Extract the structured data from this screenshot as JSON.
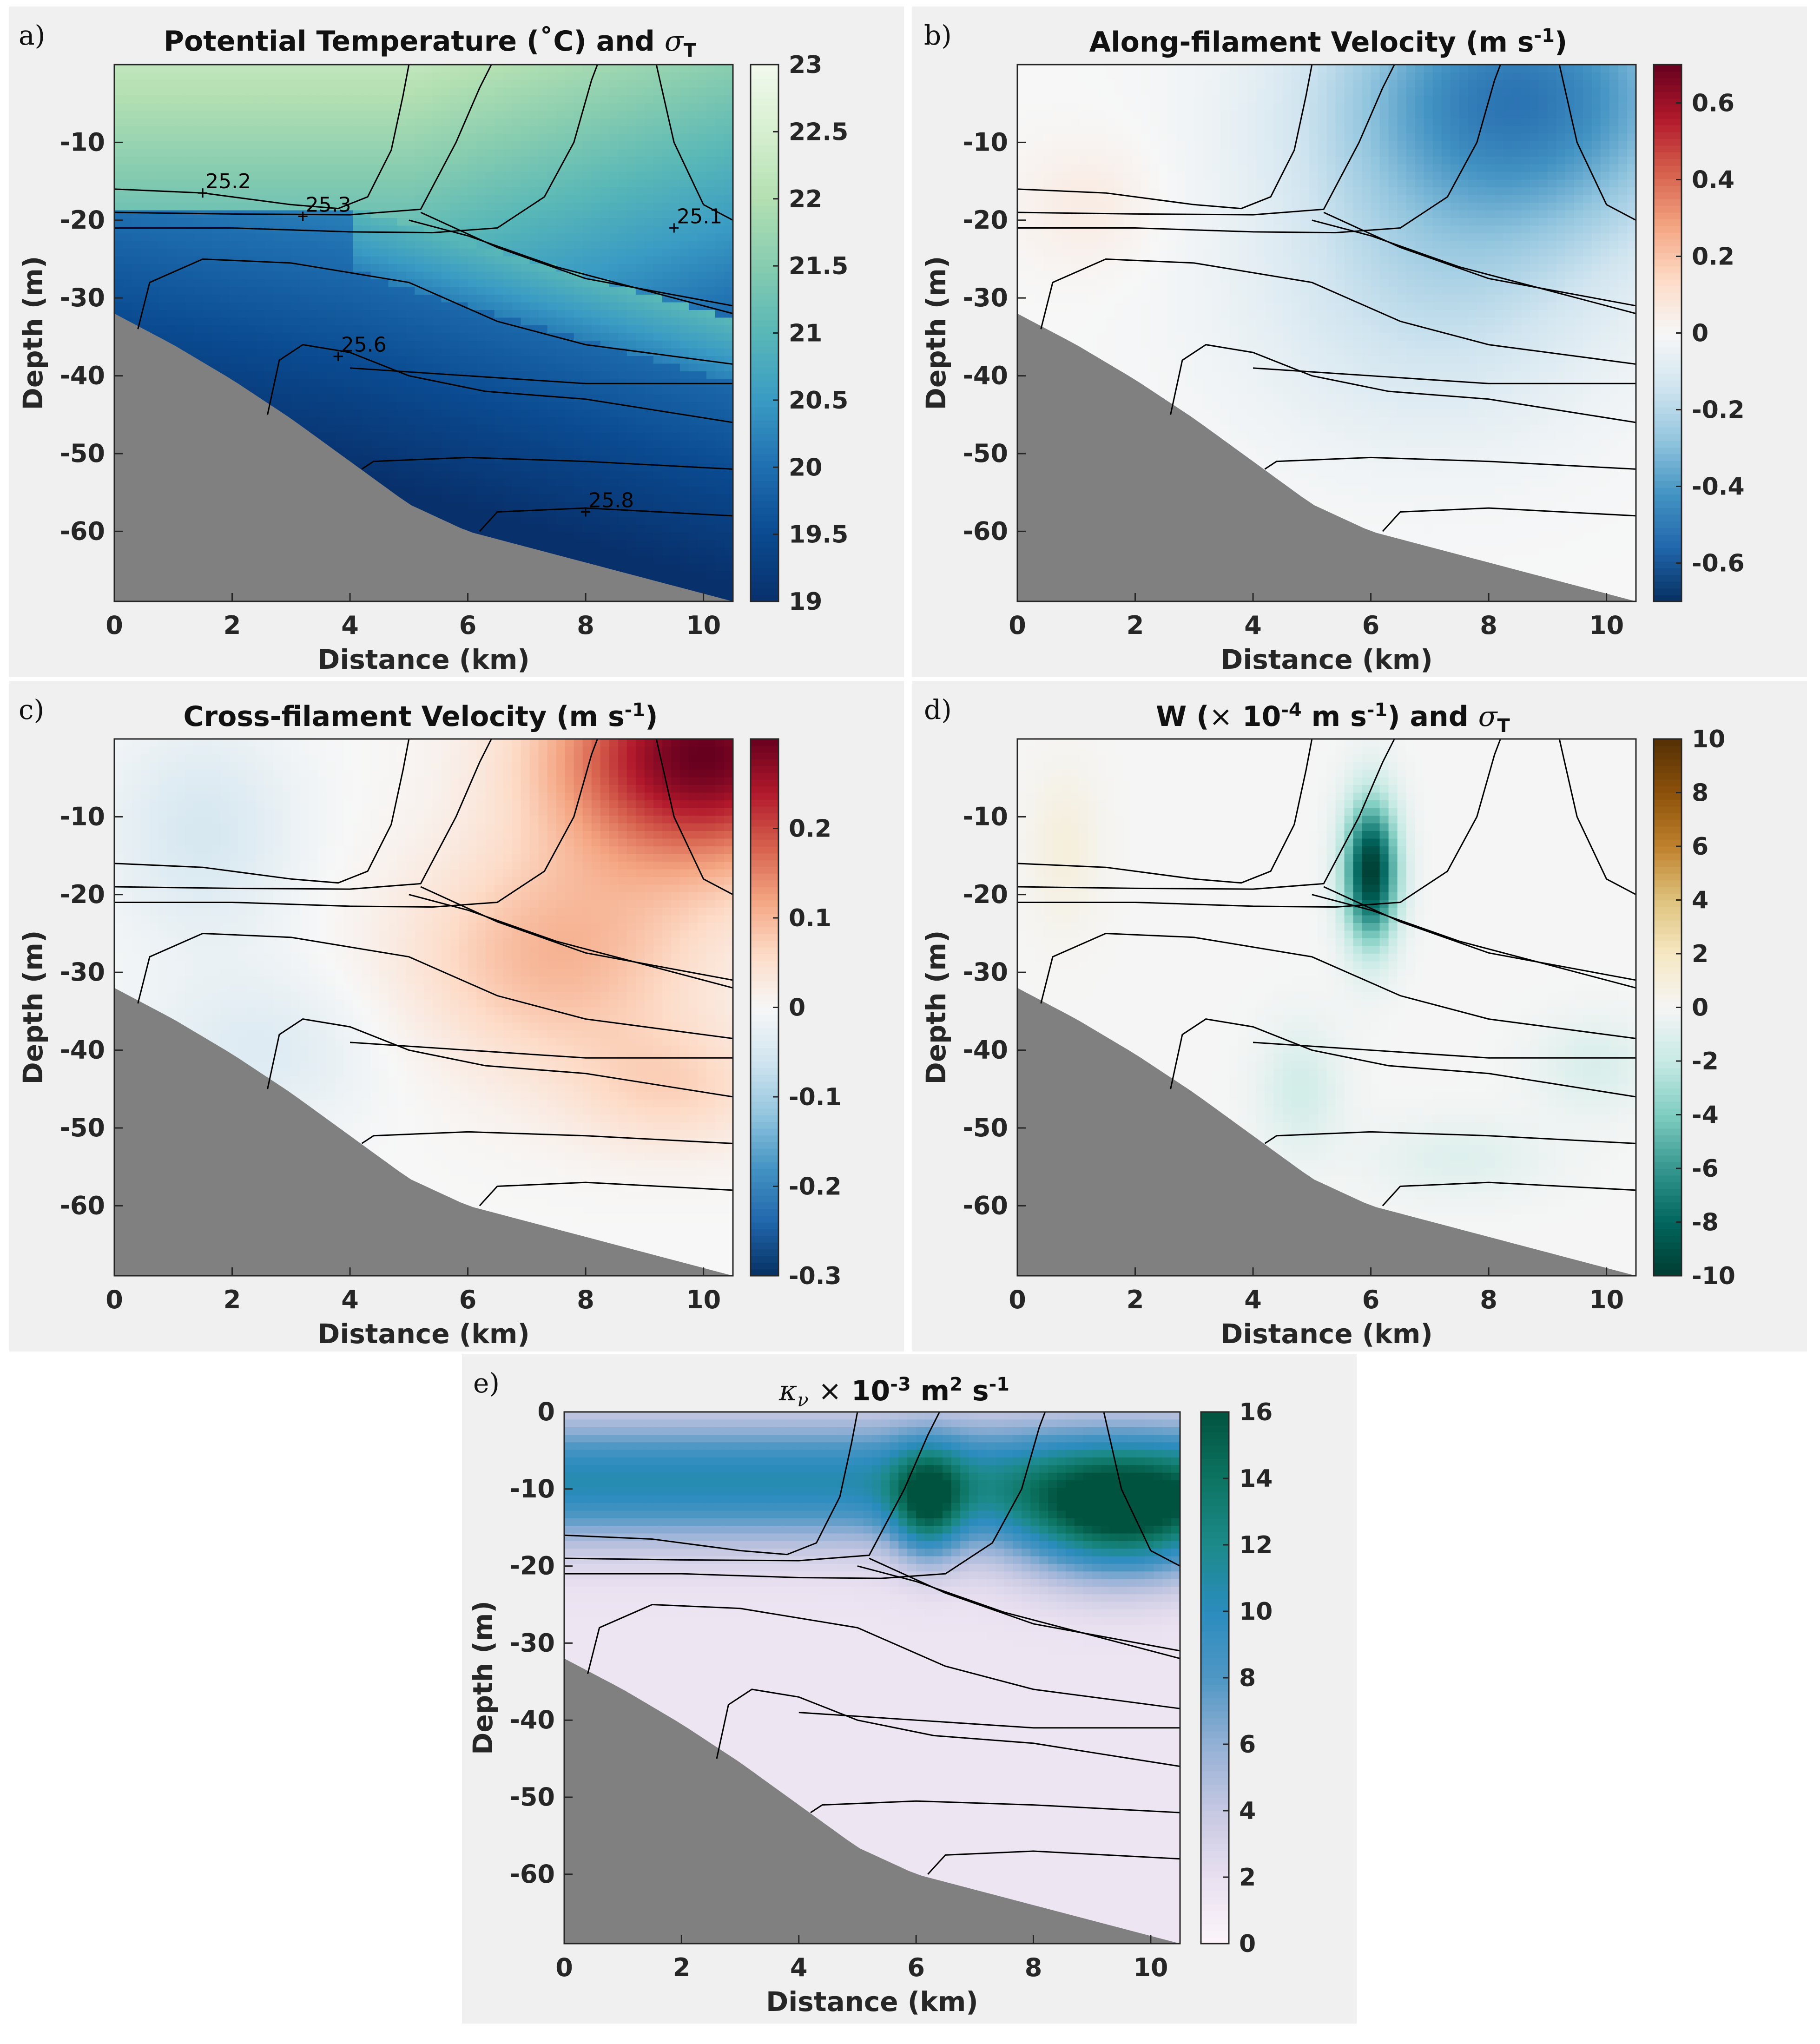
{
  "chart_data": [
    {
      "panel": "a)",
      "type": "heatmap",
      "title": "Potential Temperature (˚C) and σT",
      "title_main": "Potential Temperature (",
      "title_unit": "˚C",
      "title_tail": ") and ",
      "title_sym": "σ",
      "title_sub": "T",
      "xlabel": "Distance (km)",
      "ylabel": "Depth (m)",
      "xlim": [
        0,
        10.5
      ],
      "ylim": [
        -69,
        0
      ],
      "xticks": [
        "0",
        "2",
        "4",
        "6",
        "8",
        "10"
      ],
      "yticks": [
        "-10",
        "-20",
        "-30",
        "-40",
        "-50",
        "-60"
      ],
      "colorbar": {
        "min": 19,
        "max": 23,
        "ticks": [
          "19",
          "19.5",
          "20",
          "20.5",
          "21",
          "21.5",
          "22",
          "22.5",
          "23"
        ],
        "colors": [
          "#08306b",
          "#0a4a90",
          "#1f6fb0",
          "#3a9bc4",
          "#58b7b7",
          "#86ccb0",
          "#b3e0b2",
          "#d6efcf",
          "#f2faee"
        ]
      },
      "contour_labels": [
        "25.2",
        "25.3",
        "25.1",
        "25.6",
        "25.8"
      ]
    },
    {
      "panel": "b)",
      "type": "heatmap",
      "title": "Along-filament Velocity (m s-1)",
      "title_main": "Along-filament Velocity (m s",
      "title_sup": "-1",
      "title_tail": ")",
      "xlabel": "Distance (km)",
      "ylabel": "Depth (m)",
      "xlim": [
        0,
        10.5
      ],
      "ylim": [
        -69,
        0
      ],
      "xticks": [
        "0",
        "2",
        "4",
        "6",
        "8",
        "10"
      ],
      "yticks": [
        "-10",
        "-20",
        "-30",
        "-40",
        "-50",
        "-60"
      ],
      "colorbar": {
        "min": -0.7,
        "max": 0.7,
        "ticks": [
          "-0.6",
          "-0.4",
          "-0.2",
          "0",
          "0.2",
          "0.4",
          "0.6"
        ],
        "colors": [
          "#053061",
          "#2166ac",
          "#4393c3",
          "#92c5de",
          "#d1e5f0",
          "#f7f7f7",
          "#fddbc7",
          "#f4a582",
          "#d6604d",
          "#b2182b",
          "#67001f"
        ]
      }
    },
    {
      "panel": "c)",
      "type": "heatmap",
      "title": "Cross-filament Velocity (m s-1)",
      "title_main": "Cross-filament Velocity (m s",
      "title_sup": "-1",
      "title_tail": ")",
      "xlabel": "Distance (km)",
      "ylabel": "Depth (m)",
      "xlim": [
        0,
        10.5
      ],
      "ylim": [
        -69,
        0
      ],
      "xticks": [
        "0",
        "2",
        "4",
        "6",
        "8",
        "10"
      ],
      "yticks": [
        "-10",
        "-20",
        "-30",
        "-40",
        "-50",
        "-60"
      ],
      "colorbar": {
        "min": -0.3,
        "max": 0.3,
        "ticks": [
          "-0.3",
          "-0.2",
          "-0.1",
          "0",
          "0.1",
          "0.2"
        ],
        "colors": [
          "#053061",
          "#2166ac",
          "#4393c3",
          "#92c5de",
          "#d1e5f0",
          "#f7f7f7",
          "#fddbc7",
          "#f4a582",
          "#d6604d",
          "#b2182b",
          "#67001f"
        ]
      }
    },
    {
      "panel": "d)",
      "type": "heatmap",
      "title": "W (× 10-4 m s-1) and σT",
      "title_main": "W (",
      "title_times": "×",
      "title_mid": " 10",
      "title_sup": "-4",
      "title_mid2": " m s",
      "title_sup2": "-1",
      "title_tail": ") and ",
      "title_sym": "σ",
      "title_sub": "T",
      "xlabel": "Distance (km)",
      "ylabel": "Depth (m)",
      "xlim": [
        0,
        10.5
      ],
      "ylim": [
        -69,
        0
      ],
      "xticks": [
        "0",
        "2",
        "4",
        "6",
        "8",
        "10"
      ],
      "yticks": [
        "-10",
        "-20",
        "-30",
        "-40",
        "-50",
        "-60"
      ],
      "colorbar": {
        "min": -10,
        "max": 10,
        "ticks": [
          "-10",
          "-8",
          "-6",
          "-4",
          "-2",
          "0",
          "2",
          "4",
          "6",
          "8",
          "10"
        ],
        "colors": [
          "#003c30",
          "#01665e",
          "#35978f",
          "#80cdc1",
          "#c7eae5",
          "#f5f5f5",
          "#f6e8c3",
          "#dfc27d",
          "#bf812d",
          "#8c510a",
          "#543005"
        ]
      }
    },
    {
      "panel": "e)",
      "type": "heatmap",
      "title": "κν × 10-3 m2 s-1",
      "title_sym": "κ",
      "title_sub": "ν",
      "title_times": "×",
      "title_mid": " 10",
      "title_sup": "-3",
      "title_mid2": " m",
      "title_sup2": "2",
      "title_mid3": " s",
      "title_sup3": "-1",
      "xlabel": "Distance (km)",
      "ylabel": "Depth (m)",
      "xlim": [
        0,
        10.5
      ],
      "ylim": [
        -69,
        0
      ],
      "xticks": [
        "0",
        "2",
        "4",
        "6",
        "8",
        "10"
      ],
      "yticks": [
        "0",
        "-10",
        "-20",
        "-30",
        "-40",
        "-50",
        "-60"
      ],
      "colorbar": {
        "min": 0,
        "max": 16,
        "ticks": [
          "0",
          "2",
          "4",
          "6",
          "8",
          "10",
          "12",
          "14",
          "16"
        ],
        "colors": [
          "#fdf5fb",
          "#e9e0f0",
          "#c6c8e2",
          "#93b0d5",
          "#4f97c4",
          "#2b8cbe",
          "#1c8a8a",
          "#0d7462",
          "#00533f"
        ]
      }
    }
  ]
}
